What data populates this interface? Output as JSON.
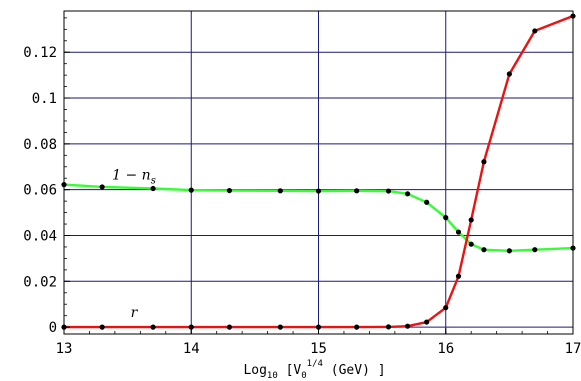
{
  "chart_data": {
    "type": "line",
    "title": "",
    "xlabel": "Log",
    "xlabel_parts": {
      "prefix": "Log",
      "sub": "10",
      "open": " [V",
      "sub0": "0",
      "sup": "1/4",
      "close": " (GeV) ]"
    },
    "ylabel": "",
    "xlim": [
      13,
      17
    ],
    "ylim": [
      -0.003,
      0.138
    ],
    "x_ticks": [
      13,
      14,
      15,
      16,
      17
    ],
    "x_tick_labels": [
      "13",
      "14",
      "15",
      "16",
      "17"
    ],
    "y_ticks": [
      0,
      0.02,
      0.04,
      0.06,
      0.08,
      0.1,
      0.12
    ],
    "y_tick_labels": [
      "0",
      "0.02",
      "0.04",
      "0.06",
      "0.08",
      "0.1",
      "0.12"
    ],
    "grid": true,
    "colors": {
      "grid": "#1a1a7a",
      "ns_series": "#33ff33",
      "r_series": "#ee1111",
      "points": "#000000"
    },
    "series": [
      {
        "name": "1 − n",
        "name_sub": "s",
        "color": "#33ff33",
        "label_at": [
          13.55,
          0.0645
        ],
        "x": [
          13.0,
          13.3,
          13.7,
          14.0,
          14.3,
          14.7,
          15.0,
          15.3,
          15.55,
          15.7,
          15.85,
          16.0,
          16.1,
          16.2,
          16.3,
          16.5,
          16.7,
          17.0
        ],
        "y": [
          0.0622,
          0.0612,
          0.0605,
          0.0598,
          0.0596,
          0.0595,
          0.0594,
          0.0595,
          0.0594,
          0.0582,
          0.0545,
          0.0478,
          0.0415,
          0.0362,
          0.0338,
          0.0333,
          0.0338,
          0.0345
        ]
      },
      {
        "name": "r",
        "color": "#ee1111",
        "label_at": [
          13.55,
          0.0045
        ],
        "x": [
          13.0,
          13.3,
          13.7,
          14.0,
          14.3,
          14.7,
          15.0,
          15.3,
          15.55,
          15.7,
          15.85,
          16.0,
          16.1,
          16.2,
          16.3,
          16.5,
          16.7,
          17.0
        ],
        "y": [
          0.0,
          0.0,
          0.0,
          0.0,
          0.0,
          0.0,
          0.0,
          0.0,
          0.0001,
          0.0004,
          0.0022,
          0.0085,
          0.0222,
          0.0468,
          0.0722,
          0.1105,
          0.1293,
          0.1358
        ]
      }
    ]
  }
}
